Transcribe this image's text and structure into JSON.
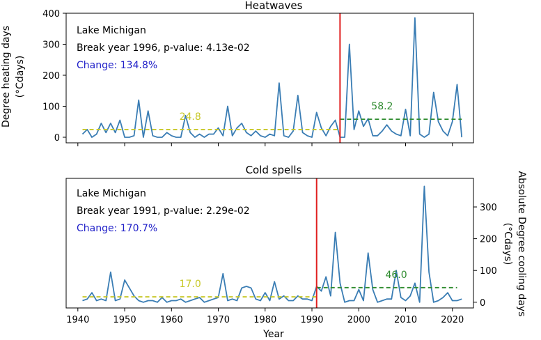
{
  "chart_data": [
    {
      "type": "line",
      "title": "Heatwaves",
      "xlabel": "",
      "ylabel": "Degree heating days (°Cdays)",
      "ylabel_lines": [
        "Degree heating days",
        "(°Cdays)"
      ],
      "xlim": [
        1937.5,
        2024.5
      ],
      "ylim": [
        -18,
        400
      ],
      "yticks": [
        0,
        100,
        200,
        300,
        400
      ],
      "xticks": [
        1940,
        1950,
        1960,
        1970,
        1980,
        1990,
        2000,
        2010,
        2020
      ],
      "x_tick_labels_visible": false,
      "yaxis_side": "left",
      "annotations": {
        "location": "Lake Michigan",
        "break_text": "Break year 1996, p-value: 4.13e-02",
        "change_text": "Change: 134.8%"
      },
      "break_year": 1996,
      "means": [
        {
          "label": "24.8",
          "value": 24.8,
          "x": [
            1941,
            1996
          ],
          "label_x": 1964,
          "color": "#c8c828"
        },
        {
          "label": "58.2",
          "value": 58.2,
          "x": [
            1996,
            2022
          ],
          "label_x": 2005,
          "color": "#2e8b2e"
        }
      ],
      "series": [
        {
          "x": [
            1941,
            1942,
            1943,
            1944,
            1945,
            1946,
            1947,
            1948,
            1949,
            1950,
            1951,
            1952,
            1953,
            1954,
            1955,
            1956,
            1957,
            1958,
            1959,
            1960,
            1961,
            1962,
            1963,
            1964,
            1965,
            1966,
            1967,
            1968,
            1969,
            1970,
            1971,
            1972,
            1973,
            1974,
            1975,
            1976,
            1977,
            1978,
            1979,
            1980,
            1981,
            1982,
            1983,
            1984,
            1985,
            1986,
            1987,
            1988,
            1989,
            1990,
            1991,
            1992,
            1993,
            1994,
            1995,
            1996,
            1997,
            1998,
            1999,
            2000,
            2001,
            2002,
            2003,
            2004,
            2005,
            2006,
            2007,
            2008,
            2009,
            2010,
            2011,
            2012,
            2013,
            2014,
            2015,
            2016,
            2017,
            2018,
            2019,
            2020,
            2021,
            2022
          ],
          "values": [
            10,
            25,
            0,
            10,
            45,
            15,
            45,
            15,
            55,
            0,
            0,
            5,
            120,
            0,
            85,
            5,
            0,
            0,
            15,
            5,
            0,
            0,
            70,
            15,
            0,
            10,
            0,
            10,
            10,
            30,
            5,
            100,
            5,
            30,
            45,
            15,
            5,
            20,
            5,
            0,
            10,
            5,
            175,
            5,
            0,
            20,
            135,
            15,
            5,
            0,
            80,
            30,
            5,
            35,
            55,
            0,
            0,
            300,
            25,
            85,
            35,
            60,
            5,
            5,
            20,
            40,
            20,
            10,
            5,
            90,
            5,
            385,
            10,
            0,
            10,
            145,
            50,
            20,
            5,
            50,
            170,
            0
          ],
          "color": "#3a7db4"
        }
      ]
    },
    {
      "type": "line",
      "title": "Cold spells",
      "xlabel": "Year",
      "ylabel": "Absolute Degree cooling days (°Cdays)",
      "ylabel_lines": [
        "Absolute Degree cooling days",
        "(°Cdays)"
      ],
      "xlim": [
        1937.5,
        2024.5
      ],
      "ylim": [
        -18,
        390
      ],
      "yticks": [
        0,
        100,
        200,
        300
      ],
      "xticks": [
        1940,
        1950,
        1960,
        1970,
        1980,
        1990,
        2000,
        2010,
        2020
      ],
      "x_tick_labels_visible": true,
      "yaxis_side": "right",
      "annotations": {
        "location": "Lake Michigan",
        "break_text": "Break year 1991, p-value: 2.29e-02",
        "change_text": "Change: 170.7%"
      },
      "break_year": 1991,
      "means": [
        {
          "label": "17.0",
          "value": 17.0,
          "x": [
            1941,
            1991
          ],
          "label_x": 1964,
          "color": "#c8c828"
        },
        {
          "label": "46.0",
          "value": 46.0,
          "x": [
            1991,
            2021
          ],
          "label_x": 2008,
          "color": "#2e8b2e"
        }
      ],
      "series": [
        {
          "x": [
            1941,
            1942,
            1943,
            1944,
            1945,
            1946,
            1947,
            1948,
            1949,
            1950,
            1951,
            1952,
            1953,
            1954,
            1955,
            1956,
            1957,
            1958,
            1959,
            1960,
            1961,
            1962,
            1963,
            1964,
            1965,
            1966,
            1967,
            1968,
            1969,
            1970,
            1971,
            1972,
            1973,
            1974,
            1975,
            1976,
            1977,
            1978,
            1979,
            1980,
            1981,
            1982,
            1983,
            1984,
            1985,
            1986,
            1987,
            1988,
            1989,
            1990,
            1991,
            1992,
            1993,
            1994,
            1995,
            1996,
            1997,
            1998,
            1999,
            2000,
            2001,
            2002,
            2003,
            2004,
            2005,
            2006,
            2007,
            2008,
            2009,
            2010,
            2011,
            2012,
            2013,
            2014,
            2015,
            2016,
            2017,
            2018,
            2019,
            2020,
            2021,
            2022
          ],
          "values": [
            5,
            10,
            30,
            5,
            10,
            5,
            95,
            5,
            10,
            70,
            45,
            20,
            5,
            0,
            5,
            5,
            0,
            15,
            0,
            5,
            5,
            10,
            0,
            5,
            10,
            15,
            0,
            5,
            10,
            15,
            90,
            5,
            10,
            5,
            45,
            50,
            45,
            10,
            5,
            30,
            5,
            65,
            10,
            20,
            5,
            5,
            20,
            10,
            10,
            5,
            50,
            35,
            80,
            20,
            220,
            60,
            0,
            5,
            5,
            40,
            5,
            155,
            40,
            0,
            5,
            10,
            10,
            100,
            15,
            5,
            20,
            60,
            0,
            365,
            95,
            0,
            5,
            15,
            30,
            5,
            5,
            10
          ],
          "color": "#3a7db4"
        }
      ]
    }
  ]
}
